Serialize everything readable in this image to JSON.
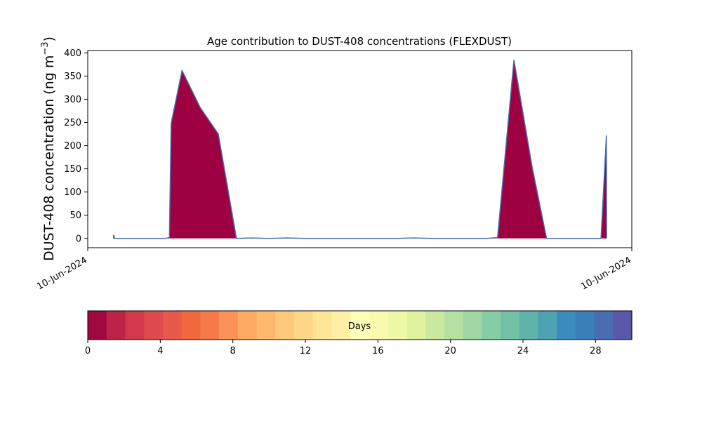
{
  "chart_data": {
    "type": "area",
    "title": "Age contribution to DUST-408 concentrations (FLEXDUST)",
    "ylabel_main": "DUST-408 concentration (ng m",
    "ylabel_sup": "−3",
    "ylabel_close": ")",
    "xlabel": "",
    "xlim": [
      0,
      30
    ],
    "ylim": [
      -20,
      405
    ],
    "x_ticks": [
      {
        "value": 0,
        "label": "10-Jun-2024"
      },
      {
        "value": 30,
        "label": "10-Jun-2024"
      }
    ],
    "y_ticks": [
      0,
      50,
      100,
      150,
      200,
      250,
      300,
      350,
      400
    ],
    "grid": false,
    "series": [
      {
        "color": "#9e0142",
        "x": [
          1.4,
          1.5,
          4.3,
          4.5,
          4.6,
          5.2,
          6.2,
          7.2,
          8.2,
          9,
          10,
          11,
          12,
          13,
          14,
          15,
          16,
          17,
          18,
          19,
          20,
          21,
          22,
          22.6,
          23.5,
          24.5,
          25.3,
          27,
          28.2,
          28.3,
          28.6,
          28.61
        ],
        "y": [
          8,
          0,
          0,
          2,
          248,
          362,
          282,
          225,
          0,
          1,
          0,
          1,
          0,
          0,
          0,
          0,
          0,
          0,
          1,
          0,
          0,
          0,
          0,
          2,
          385,
          155,
          0,
          0,
          0,
          0,
          222,
          0
        ]
      }
    ],
    "colorbar": {
      "label": "Days",
      "min": 0,
      "max": 30,
      "ticks": [
        0,
        4,
        8,
        12,
        16,
        20,
        24,
        28
      ],
      "colors": [
        "#a0093f",
        "#bd2247",
        "#d1384c",
        "#df4a4c",
        "#e75a4b",
        "#f0683e",
        "#f57a49",
        "#fa9158",
        "#fcaa62",
        "#feba6c",
        "#ffc97b",
        "#fed889",
        "#ffe697",
        "#fff0a3",
        "#ffffb9",
        "#f9fab0",
        "#eff8a6",
        "#dff29e",
        "#cbe99e",
        "#b5e0a1",
        "#9ed7a4",
        "#85cda5",
        "#72c1a7",
        "#5fb3ab",
        "#4ea2b1",
        "#3b8cbd",
        "#3a7fb8",
        "#4a6cb0",
        "#5a58a8"
      ]
    }
  }
}
